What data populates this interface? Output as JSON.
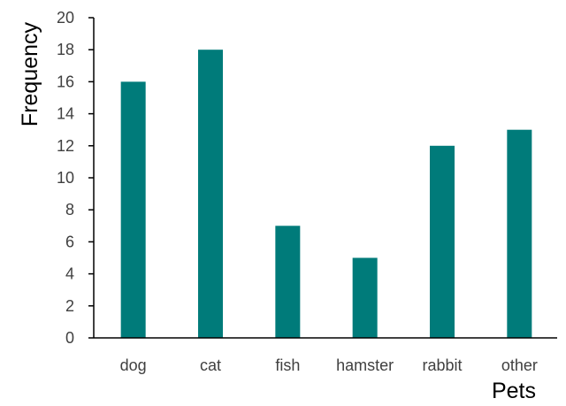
{
  "chart_data": {
    "type": "bar",
    "categories": [
      "dog",
      "cat",
      "fish",
      "hamster",
      "rabbit",
      "other"
    ],
    "values": [
      16,
      18,
      7,
      5,
      12,
      13
    ],
    "title": "",
    "xlabel": "Pets",
    "ylabel": "Frequency",
    "ylim": [
      0,
      20
    ],
    "yticks": [
      "0",
      "2",
      "4",
      "6",
      "8",
      "10",
      "12",
      "14",
      "16",
      "18",
      "20"
    ],
    "grid": false,
    "bar_color": "#007B7A",
    "axis_color": "#000000"
  }
}
